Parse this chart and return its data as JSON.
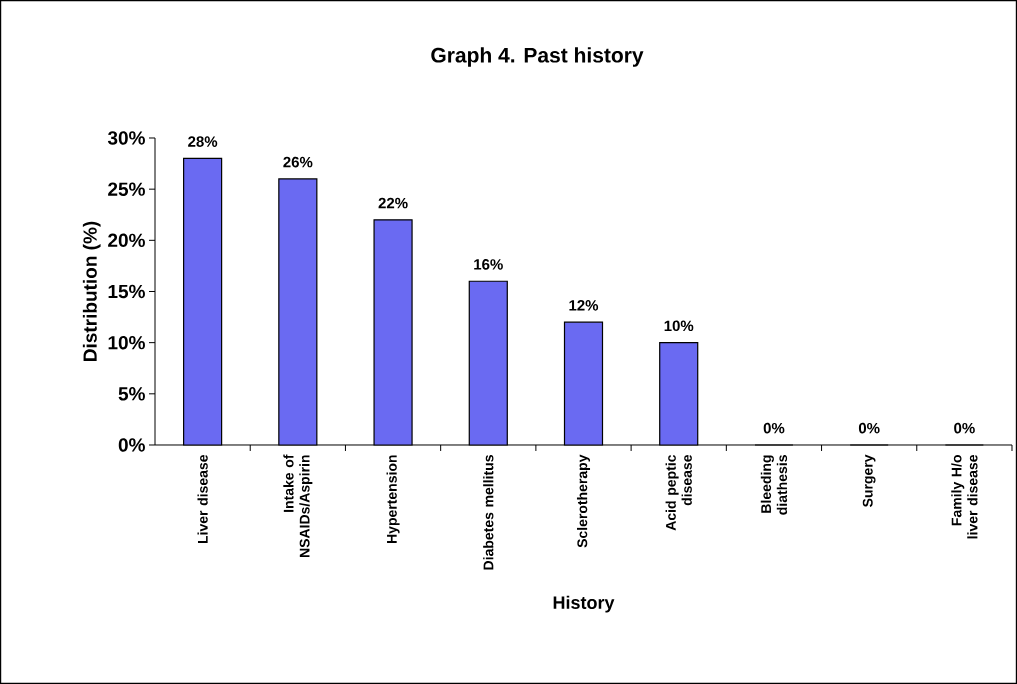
{
  "chart_data": {
    "type": "bar",
    "title": "Graph 4. Past history",
    "xlabel": "History",
    "ylabel": "Distribution (%)",
    "categories": [
      "Liver disease",
      "Intake of NSAIDs/Aspirin",
      "Hypertension",
      "Diabetes mellitus",
      "Sclerotherapy",
      "Acid peptic disease",
      "Bleeding diathesis",
      "Surgery",
      "Family H/o liver disease"
    ],
    "values": [
      28,
      26,
      22,
      16,
      12,
      10,
      0,
      0,
      0
    ],
    "value_labels": [
      "28%",
      "26%",
      "22%",
      "16%",
      "12%",
      "10%",
      "0%",
      "0%",
      "0%"
    ],
    "color": "#6a6af2",
    "ylim": [
      0,
      30
    ],
    "yticks": [
      {
        "value": 0,
        "label": "0%"
      },
      {
        "value": 5,
        "label": "5%"
      },
      {
        "value": 10,
        "label": "10%"
      },
      {
        "value": 15,
        "label": "15%"
      },
      {
        "value": 20,
        "label": "20%"
      },
      {
        "value": 25,
        "label": "25%"
      },
      {
        "value": 30,
        "label": "30%"
      }
    ],
    "grid": false
  }
}
